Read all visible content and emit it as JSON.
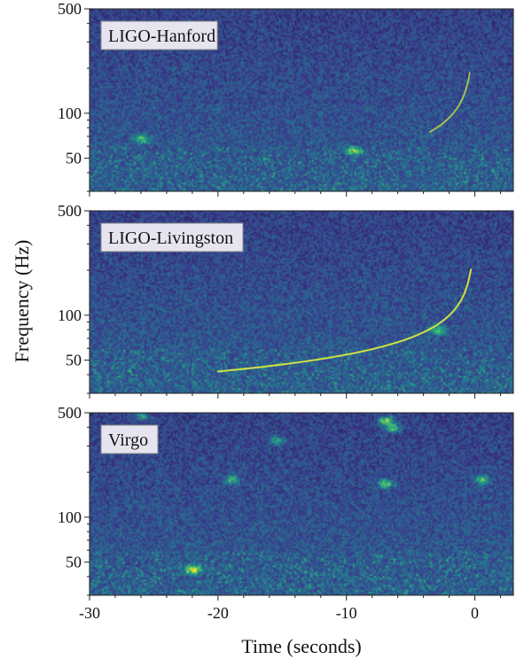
{
  "chart_data": {
    "type": "heatmap",
    "description_free": true,
    "xlabel": "Time (seconds)",
    "ylabel": "Frequency (Hz)",
    "x_ticks": [
      -30,
      -20,
      -10,
      0
    ],
    "x_range": [
      -30,
      3
    ],
    "y_scale": "log",
    "y_range": [
      30,
      500
    ],
    "y_ticks": [
      50,
      100,
      500
    ],
    "colormap": [
      "#2b1f5c",
      "#3a3d8f",
      "#2e5f8f",
      "#21888d",
      "#2bb07f",
      "#7cd250",
      "#fde725"
    ],
    "panels": [
      {
        "label": "LIGO-Hanford",
        "chirp": {
          "visible": true,
          "start_time": -3.5,
          "end_time": -0.4,
          "start_freq": 75,
          "end_freq": 250,
          "strength": 0.55
        },
        "hotspots": [
          [
            -26,
            68,
            0.6
          ],
          [
            -9.5,
            57,
            0.7
          ]
        ]
      },
      {
        "label": "LIGO-Livingston",
        "chirp": {
          "visible": true,
          "start_time": -20,
          "end_time": -0.3,
          "start_freq": 42,
          "end_freq": 220,
          "strength": 0.85
        },
        "hotspots": [
          [
            -3,
            80,
            0.6
          ]
        ]
      },
      {
        "label": "Virgo",
        "chirp": {
          "visible": false
        },
        "hotspots": [
          [
            -22,
            45,
            0.9
          ],
          [
            -7,
            450,
            0.8
          ],
          [
            -6.5,
            400,
            0.7
          ],
          [
            -7,
            170,
            0.7
          ],
          [
            -19,
            180,
            0.6
          ],
          [
            0.5,
            180,
            0.6
          ],
          [
            -15.5,
            330,
            0.5
          ],
          [
            -26,
            480,
            0.5
          ]
        ]
      }
    ]
  }
}
